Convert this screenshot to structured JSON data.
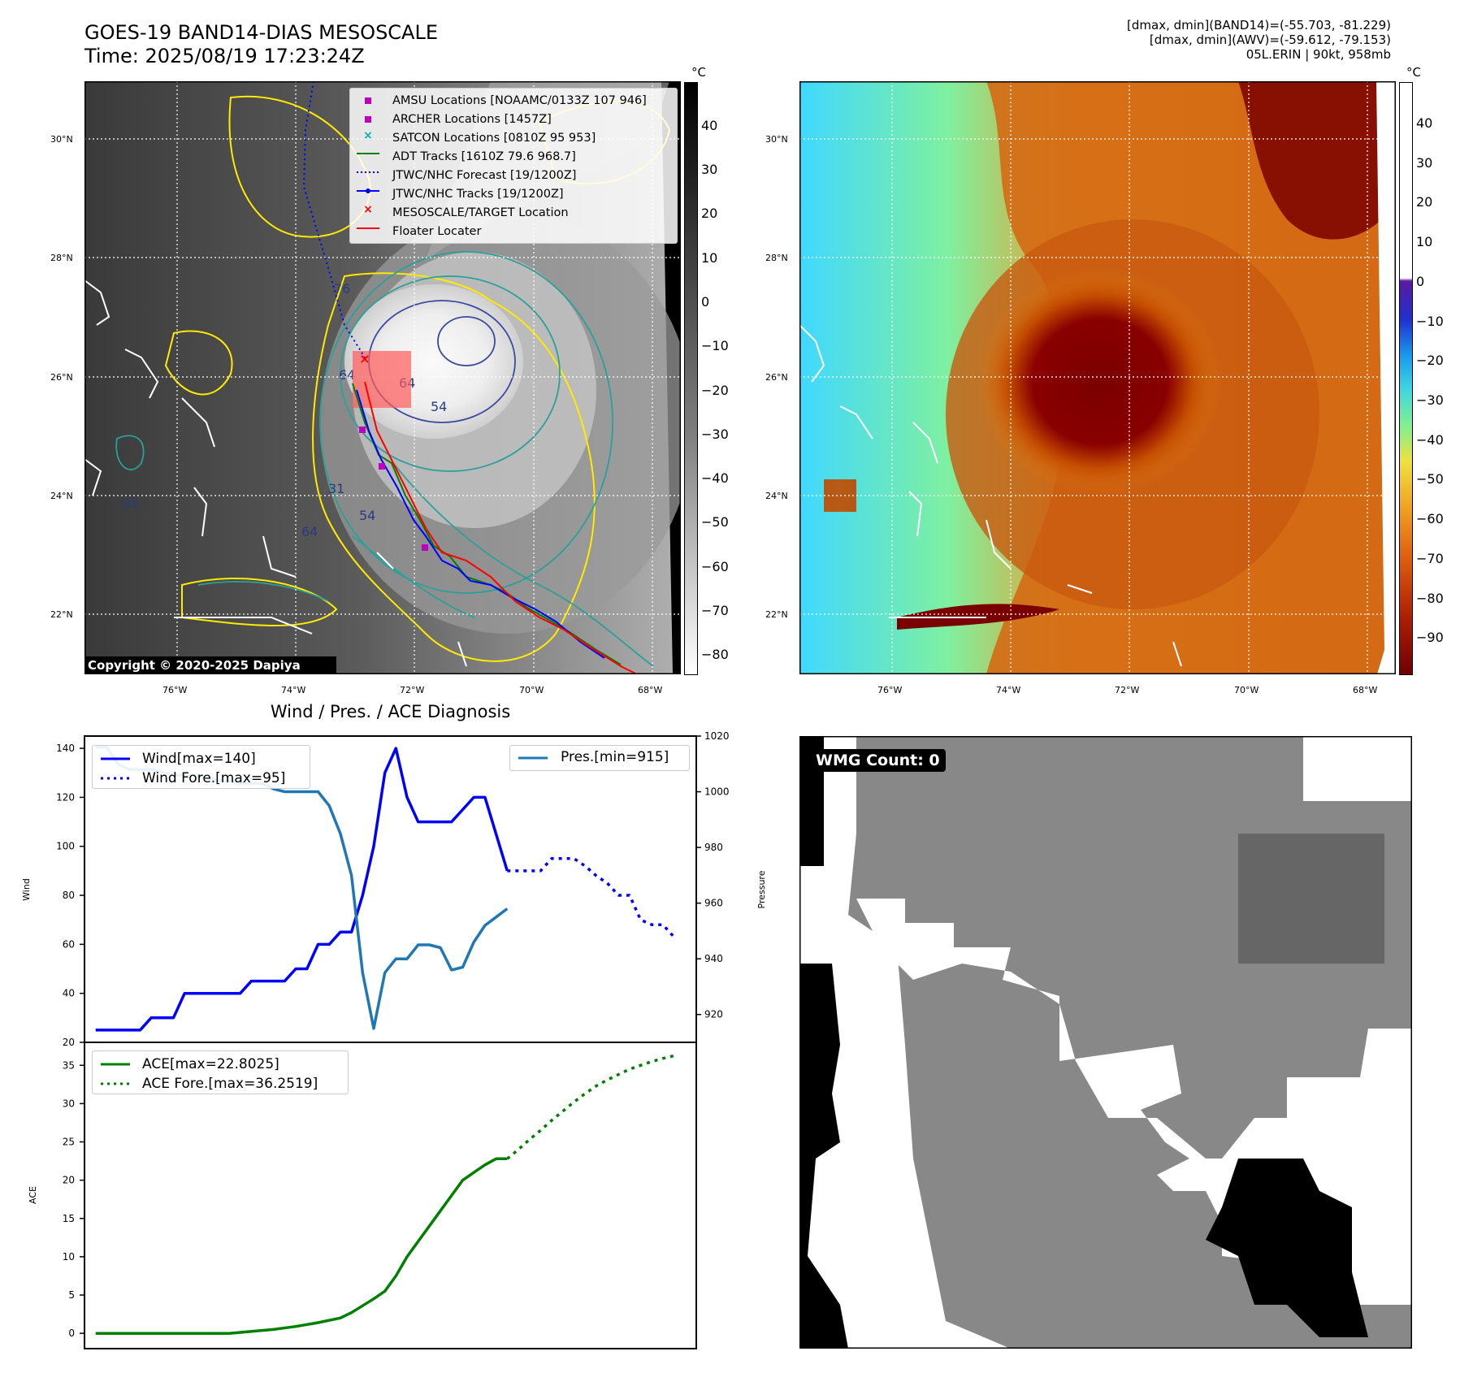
{
  "header": {
    "title_line1": "GOES-19 BAND14-DIAS MESOSCALE",
    "title_line2": "Time: 2025/08/19 17:23:24Z",
    "right_line1": "[dmax, dmin](BAND14)=(-55.703, -81.229)",
    "right_line2": "[dmax, dmin](AWV)=(-59.612, -79.153)",
    "right_line3": "05L.ERIN | 90kt, 958mb"
  },
  "maps": {
    "lat_labels": [
      "30°N",
      "28°N",
      "26°N",
      "24°N",
      "22°N"
    ],
    "lon_labels": [
      "76°W",
      "74°W",
      "72°W",
      "70°W",
      "68°W"
    ],
    "unit": "°C",
    "copyright": "Copyright © 2020-2025 Dapiya",
    "contour_labels": [
      "76",
      "64",
      "64",
      "54",
      "31",
      "54",
      "64",
      "31"
    ],
    "legend": [
      {
        "label": "AMSU Locations [NOAAMC/0133Z 107 946]",
        "color": "#c000c0",
        "marker": "square"
      },
      {
        "label": "ARCHER Locations [1457Z]",
        "color": "#c000c0",
        "marker": "square"
      },
      {
        "label": "SATCON Locations [0810Z 95 953]",
        "color": "#00b0b0",
        "marker": "x"
      },
      {
        "label": "ADT Tracks [1610Z 79.6 968.7]",
        "color": "#008000",
        "marker": "line"
      },
      {
        "label": "JTWC/NHC Forecast [19/1200Z]",
        "color": "#0000ff",
        "marker": "dotted"
      },
      {
        "label": "JTWC/NHC Tracks [19/1200Z]",
        "color": "#0000ff",
        "marker": "line-dot"
      },
      {
        "label": "MESOSCALE/TARGET Location",
        "color": "#ff0000",
        "marker": "x"
      },
      {
        "label": "Floater Locater",
        "color": "#ff0000",
        "marker": "line"
      }
    ],
    "left_colorbar_ticks": [
      "40",
      "30",
      "20",
      "10",
      "0",
      "−10",
      "−20",
      "−30",
      "−40",
      "−50",
      "−60",
      "−70",
      "−80"
    ],
    "right_colorbar_ticks": [
      "40",
      "30",
      "20",
      "10",
      "0",
      "−10",
      "−20",
      "−30",
      "−40",
      "−50",
      "−60",
      "−70",
      "−80",
      "−90"
    ]
  },
  "diagnosis": {
    "title": "Wind / Pres. / ACE Diagnosis",
    "wind_axis_label": "Wind",
    "pressure_axis_label": "Pressure",
    "ace_axis_label": "ACE",
    "wind_ticks": [
      "140",
      "120",
      "100",
      "80",
      "60",
      "40",
      "20"
    ],
    "pressure_ticks": [
      "1020",
      "1000",
      "980",
      "960",
      "940",
      "920"
    ],
    "ace_ticks": [
      "35",
      "30",
      "25",
      "20",
      "15",
      "10",
      "5",
      "0"
    ],
    "legend_wind": "Wind[max=140]",
    "legend_wind_fore": "Wind Fore.[max=95]",
    "legend_pres": "Pres.[min=915]",
    "legend_ace": "ACE[max=22.8025]",
    "legend_ace_fore": "ACE Fore.[max=36.2519]"
  },
  "wmg": {
    "label": "WMG Count: 0"
  },
  "chart_data": [
    {
      "type": "line",
      "title": "Wind / Pres. / ACE Diagnosis",
      "ylabel": "Wind",
      "ylim": [
        20,
        145
      ],
      "y2label": "Pressure",
      "y2lim": [
        910,
        1020
      ],
      "series": [
        {
          "name": "Wind[max=140]",
          "axis": "left",
          "color": "#0000ff",
          "x": [
            0,
            1,
            2,
            3,
            4,
            5,
            6,
            7,
            8,
            9,
            10,
            11,
            12,
            13,
            14,
            15,
            16,
            17,
            18,
            19,
            20,
            21,
            22,
            23,
            24,
            25,
            26,
            27,
            28,
            29,
            30,
            31,
            32,
            33,
            34,
            35,
            36,
            37
          ],
          "values": [
            25,
            25,
            25,
            25,
            25,
            30,
            30,
            30,
            40,
            40,
            40,
            40,
            40,
            40,
            45,
            45,
            45,
            45,
            50,
            50,
            60,
            60,
            65,
            65,
            80,
            100,
            130,
            140,
            120,
            110,
            110,
            110,
            110,
            115,
            120,
            120,
            105,
            90
          ]
        },
        {
          "name": "Wind Fore.[max=95]",
          "axis": "left",
          "color": "#0000ff",
          "dashed": true,
          "x": [
            37,
            38,
            39,
            40,
            41,
            42,
            43,
            44,
            45,
            46,
            47,
            48,
            49,
            50,
            51,
            52
          ],
          "values": [
            90,
            90,
            90,
            90,
            95,
            95,
            95,
            92,
            88,
            85,
            80,
            80,
            70,
            68,
            68,
            63
          ]
        },
        {
          "name": "Pres.[min=915]",
          "axis": "right",
          "color": "#1f77b4",
          "x": [
            0,
            1,
            2,
            3,
            4,
            5,
            6,
            7,
            8,
            9,
            10,
            11,
            12,
            13,
            14,
            15,
            16,
            17,
            18,
            19,
            20,
            21,
            22,
            23,
            24,
            25,
            26,
            27,
            28,
            29,
            30,
            31,
            32,
            33,
            34,
            35,
            36,
            37
          ],
          "values": [
            1016,
            1016,
            1010,
            1008,
            1008,
            1008,
            1007,
            1006,
            1006,
            1006,
            1005,
            1004,
            1004,
            1003,
            1003,
            1003,
            1001,
            1000,
            1000,
            1000,
            1000,
            995,
            985,
            970,
            935,
            915,
            935,
            940,
            940,
            945,
            945,
            944,
            936,
            937,
            946,
            952,
            955,
            958
          ]
        }
      ]
    },
    {
      "type": "line",
      "ylabel": "ACE",
      "ylim": [
        -2,
        38
      ],
      "series": [
        {
          "name": "ACE[max=22.8025]",
          "color": "#008000",
          "x": [
            0,
            4,
            8,
            12,
            16,
            18,
            20,
            22,
            23,
            24,
            25,
            26,
            27,
            28,
            29,
            30,
            31,
            32,
            33,
            34,
            35,
            36,
            37
          ],
          "values": [
            0,
            0,
            0,
            0,
            0.5,
            0.9,
            1.4,
            2.0,
            2.7,
            3.6,
            4.5,
            5.5,
            7.5,
            10,
            12,
            14,
            16,
            18,
            20,
            21,
            22,
            22.8,
            22.8
          ]
        },
        {
          "name": "ACE Fore.[max=36.2519]",
          "color": "#008000",
          "dashed": true,
          "x": [
            37,
            38,
            39,
            40,
            41,
            42,
            43,
            44,
            45,
            46,
            47,
            48,
            49,
            50,
            51,
            52
          ],
          "values": [
            22.8,
            24,
            25.3,
            26.5,
            27.8,
            29,
            30.2,
            31.3,
            32.3,
            33.1,
            33.8,
            34.5,
            35,
            35.5,
            35.9,
            36.25
          ]
        }
      ]
    }
  ]
}
